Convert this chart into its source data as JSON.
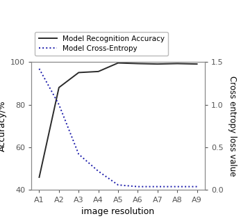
{
  "x_labels": [
    "A1",
    "A2",
    "A3",
    "A4",
    "A5",
    "A6",
    "A7",
    "A8",
    "A9"
  ],
  "accuracy": [
    46,
    88,
    95,
    95.5,
    99.5,
    99.2,
    99.0,
    99.2,
    99.0
  ],
  "cross_entropy": [
    1.42,
    1.0,
    0.42,
    0.22,
    0.06,
    0.04,
    0.04,
    0.04,
    0.04
  ],
  "accuracy_color": "#2a2a2a",
  "entropy_color": "#1a1aaa",
  "accuracy_label": "Model Recognition Accuracy",
  "entropy_label": "Model Cross-Entropy",
  "ylabel_left": "Accuracy/%",
  "ylabel_right": "Cross entropy loss value",
  "xlabel": "image resolution",
  "ylim_left": [
    40,
    100
  ],
  "ylim_right": [
    0.0,
    1.5
  ],
  "yticks_left": [
    40,
    60,
    80,
    100
  ],
  "yticks_right": [
    0.0,
    0.5,
    1.0,
    1.5
  ],
  "figsize": [
    3.47,
    3.18
  ],
  "dpi": 100
}
